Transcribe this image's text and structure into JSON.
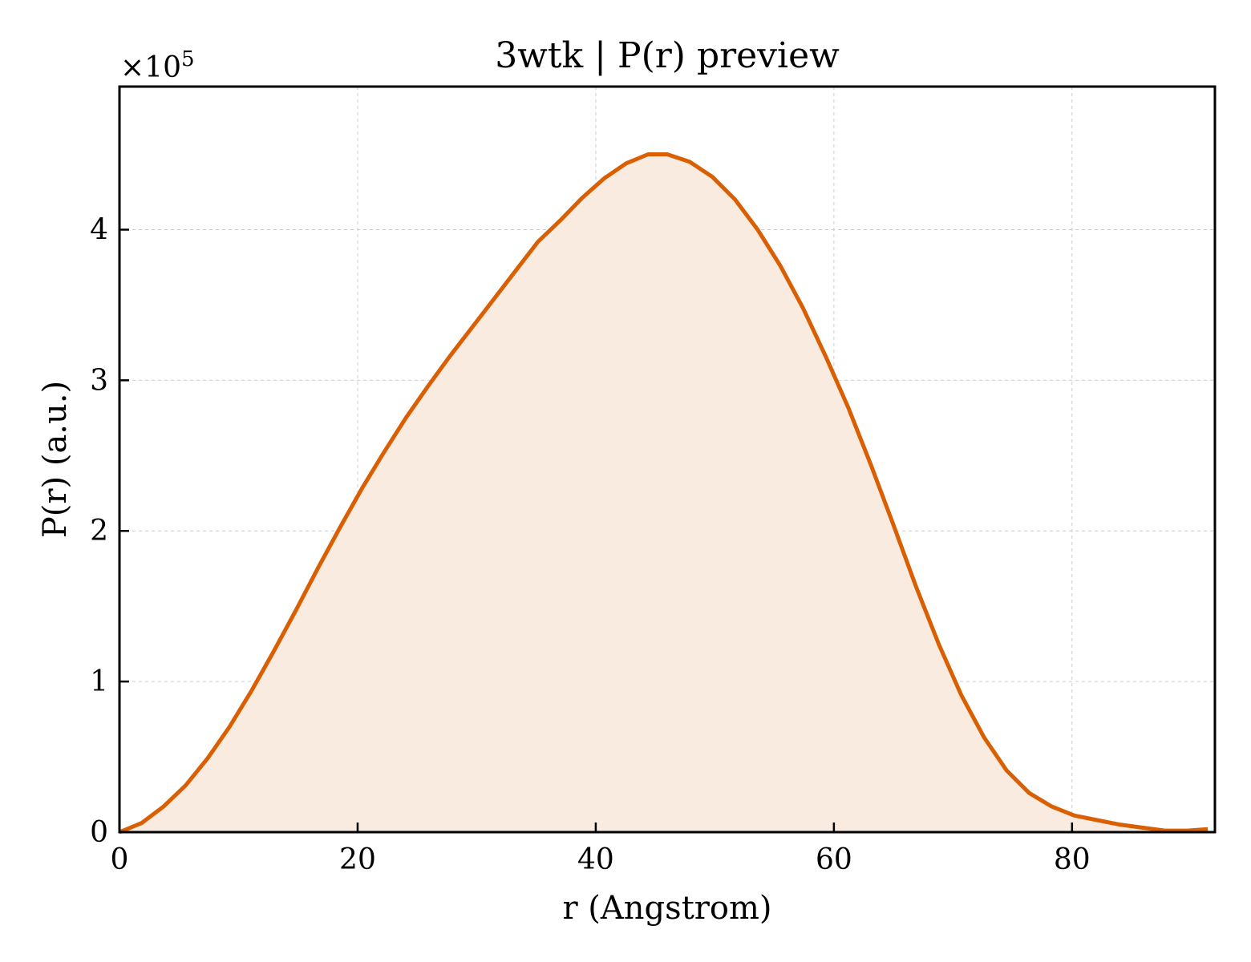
{
  "chart_data": {
    "type": "area",
    "title": "3wtk | P(r) preview",
    "xlabel": "r (Angstrom)",
    "ylabel": "P(r) (a.u.)",
    "y_scale_label": "×10",
    "y_scale_exponent": "5",
    "xlim": [
      0,
      92
    ],
    "ylim": [
      0,
      4.95
    ],
    "x_ticks": [
      0,
      20,
      40,
      60,
      80
    ],
    "y_ticks": [
      0,
      1,
      2,
      3,
      4
    ],
    "x_tick_labels": [
      "0",
      "20",
      "40",
      "60",
      "80"
    ],
    "y_tick_labels": [
      "0",
      "1",
      "2",
      "3",
      "4"
    ],
    "grid": true,
    "legend": "none",
    "line_color": "#d95f02",
    "fill_color": "#f9ebe0",
    "series": [
      {
        "x": [
          0,
          1.85,
          3.7,
          5.55,
          7.4,
          9.25,
          11.1,
          12.95,
          14.8,
          16.65,
          18.5,
          20.35,
          22.2,
          24.05,
          25.9,
          27.75,
          29.6,
          31.45,
          33.3,
          35.15,
          37.0,
          38.85,
          40.7,
          42.55,
          44.4,
          46.0,
          47.9,
          49.8,
          51.7,
          53.6,
          55.5,
          57.4,
          59.3,
          61.2,
          63.1,
          65.0,
          66.9,
          68.8,
          70.7,
          72.6,
          74.5,
          76.4,
          78.3,
          80.2,
          82.1,
          84.0,
          85.9,
          87.8,
          89.7,
          91.4
        ],
        "y": [
          0.0,
          0.06,
          0.17,
          0.31,
          0.49,
          0.7,
          0.94,
          1.2,
          1.47,
          1.75,
          2.02,
          2.28,
          2.52,
          2.75,
          2.96,
          3.16,
          3.35,
          3.54,
          3.73,
          3.92,
          4.06,
          4.21,
          4.34,
          4.44,
          4.5,
          4.5,
          4.45,
          4.35,
          4.2,
          4.0,
          3.76,
          3.48,
          3.16,
          2.82,
          2.44,
          2.04,
          1.63,
          1.25,
          0.91,
          0.63,
          0.41,
          0.26,
          0.17,
          0.11,
          0.08,
          0.05,
          0.03,
          0.01,
          0.01,
          0.02
        ]
      }
    ]
  }
}
